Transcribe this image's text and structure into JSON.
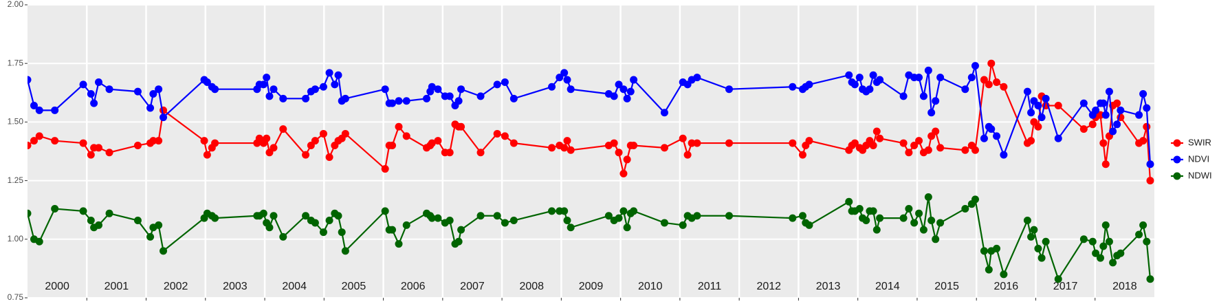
{
  "chart_data": {
    "type": "line",
    "x": [
      2000.0,
      2000.11,
      2000.2,
      2000.46,
      2000.94,
      2001.07,
      2001.12,
      2001.2,
      2001.38,
      2001.86,
      2002.07,
      2002.12,
      2002.21,
      2002.29,
      2002.98,
      2003.03,
      2003.11,
      2003.16,
      2003.87,
      2003.91,
      2003.98,
      2004.03,
      2004.08,
      2004.15,
      2004.31,
      2004.69,
      2004.78,
      2004.85,
      2004.99,
      2005.09,
      2005.18,
      2005.24,
      2005.3,
      2005.36,
      2006.03,
      2006.1,
      2006.15,
      2006.26,
      2006.39,
      2006.73,
      2006.79,
      2006.82,
      2006.92,
      2007.04,
      2007.12,
      2007.21,
      2007.27,
      2007.31,
      2007.64,
      2007.92,
      2008.05,
      2008.2,
      2008.84,
      2008.97,
      2009.05,
      2009.1,
      2009.16,
      2009.8,
      2009.89,
      2009.97,
      2010.05,
      2010.11,
      2010.17,
      2010.22,
      2010.74,
      2011.05,
      2011.13,
      2011.2,
      2011.29,
      2011.83,
      2012.9,
      2013.07,
      2013.12,
      2013.18,
      2013.85,
      2013.9,
      2013.95,
      2014.03,
      2014.08,
      2014.14,
      2014.2,
      2014.26,
      2014.32,
      2014.37,
      2014.77,
      2014.86,
      2014.95,
      2015.03,
      2015.11,
      2015.19,
      2015.24,
      2015.31,
      2015.39,
      2015.81,
      2015.92,
      2015.98,
      2016.13,
      2016.21,
      2016.25,
      2016.34,
      2016.46,
      2016.86,
      2016.92,
      2016.97,
      2017.04,
      2017.1,
      2017.17,
      2017.38,
      2017.81,
      2017.96,
      2018.01,
      2018.09,
      2018.14,
      2018.18,
      2018.24,
      2018.3,
      2018.37,
      2018.43,
      2018.74,
      2018.81,
      2018.87,
      2018.93
    ],
    "series": [
      {
        "name": "SWIR",
        "color": "#ff0000",
        "values": [
          1.4,
          1.42,
          1.44,
          1.42,
          1.41,
          1.36,
          1.39,
          1.39,
          1.37,
          1.4,
          1.41,
          1.42,
          1.42,
          1.55,
          1.42,
          1.36,
          1.39,
          1.41,
          1.41,
          1.43,
          1.41,
          1.43,
          1.37,
          1.39,
          1.47,
          1.36,
          1.4,
          1.42,
          1.45,
          1.35,
          1.4,
          1.42,
          1.43,
          1.45,
          1.3,
          1.4,
          1.4,
          1.48,
          1.44,
          1.39,
          1.4,
          1.41,
          1.42,
          1.37,
          1.37,
          1.49,
          1.48,
          1.48,
          1.37,
          1.45,
          1.44,
          1.41,
          1.39,
          1.4,
          1.39,
          1.42,
          1.38,
          1.4,
          1.41,
          1.37,
          1.28,
          1.34,
          1.4,
          1.4,
          1.39,
          1.43,
          1.36,
          1.41,
          1.41,
          1.41,
          1.41,
          1.36,
          1.4,
          1.42,
          1.38,
          1.4,
          1.41,
          1.39,
          1.38,
          1.4,
          1.42,
          1.4,
          1.46,
          1.43,
          1.41,
          1.37,
          1.4,
          1.42,
          1.37,
          1.38,
          1.44,
          1.46,
          1.39,
          1.38,
          1.4,
          1.38,
          1.68,
          1.66,
          1.75,
          1.67,
          1.65,
          1.41,
          1.42,
          1.5,
          1.48,
          1.61,
          1.57,
          1.57,
          1.47,
          1.49,
          1.52,
          1.53,
          1.41,
          1.32,
          1.44,
          1.57,
          1.58,
          1.52,
          1.41,
          1.42,
          1.48,
          1.25
        ]
      },
      {
        "name": "NDVI",
        "color": "#0000ff",
        "values": [
          1.68,
          1.57,
          1.55,
          1.55,
          1.66,
          1.62,
          1.58,
          1.67,
          1.64,
          1.63,
          1.56,
          1.62,
          1.64,
          1.52,
          1.68,
          1.67,
          1.65,
          1.64,
          1.64,
          1.66,
          1.66,
          1.69,
          1.61,
          1.64,
          1.6,
          1.6,
          1.63,
          1.64,
          1.65,
          1.71,
          1.66,
          1.7,
          1.59,
          1.6,
          1.64,
          1.58,
          1.58,
          1.59,
          1.59,
          1.6,
          1.63,
          1.65,
          1.64,
          1.61,
          1.61,
          1.57,
          1.59,
          1.64,
          1.61,
          1.66,
          1.67,
          1.6,
          1.65,
          1.69,
          1.71,
          1.68,
          1.64,
          1.62,
          1.61,
          1.66,
          1.64,
          1.6,
          1.63,
          1.68,
          1.54,
          1.67,
          1.66,
          1.68,
          1.69,
          1.64,
          1.65,
          1.64,
          1.65,
          1.66,
          1.7,
          1.67,
          1.66,
          1.69,
          1.64,
          1.63,
          1.64,
          1.7,
          1.67,
          1.68,
          1.61,
          1.7,
          1.69,
          1.69,
          1.61,
          1.72,
          1.54,
          1.59,
          1.69,
          1.64,
          1.69,
          1.74,
          1.43,
          1.48,
          1.47,
          1.44,
          1.36,
          1.63,
          1.54,
          1.59,
          1.57,
          1.52,
          1.6,
          1.43,
          1.58,
          1.53,
          1.55,
          1.58,
          1.58,
          1.53,
          1.63,
          1.46,
          1.49,
          1.55,
          1.53,
          1.62,
          1.56,
          1.32
        ]
      },
      {
        "name": "NDWI",
        "color": "#006400",
        "values": [
          1.11,
          1.0,
          0.99,
          1.13,
          1.12,
          1.08,
          1.05,
          1.06,
          1.11,
          1.08,
          1.01,
          1.05,
          1.06,
          0.95,
          1.09,
          1.11,
          1.1,
          1.09,
          1.1,
          1.1,
          1.11,
          1.07,
          1.05,
          1.1,
          1.01,
          1.1,
          1.08,
          1.07,
          1.03,
          1.08,
          1.11,
          1.1,
          1.03,
          0.95,
          1.12,
          1.04,
          1.04,
          0.98,
          1.06,
          1.11,
          1.1,
          1.09,
          1.09,
          1.07,
          1.08,
          0.98,
          0.99,
          1.04,
          1.1,
          1.1,
          1.07,
          1.08,
          1.12,
          1.12,
          1.12,
          1.08,
          1.05,
          1.1,
          1.08,
          1.09,
          1.12,
          1.05,
          1.11,
          1.12,
          1.07,
          1.06,
          1.1,
          1.09,
          1.1,
          1.1,
          1.09,
          1.1,
          1.07,
          1.06,
          1.16,
          1.12,
          1.12,
          1.13,
          1.09,
          1.08,
          1.12,
          1.12,
          1.04,
          1.09,
          1.09,
          1.13,
          1.07,
          1.11,
          1.04,
          1.18,
          1.08,
          1.0,
          1.07,
          1.13,
          1.15,
          1.17,
          0.95,
          0.87,
          0.95,
          0.96,
          0.85,
          1.08,
          1.01,
          1.04,
          0.96,
          0.92,
          0.99,
          0.83,
          1.0,
          0.99,
          0.94,
          0.92,
          0.97,
          1.06,
          0.99,
          0.9,
          0.93,
          0.94,
          1.02,
          1.06,
          0.99,
          0.83
        ]
      }
    ],
    "xlim": [
      2000,
      2019
    ],
    "xticks": [
      2001,
      2002,
      2003,
      2004,
      2005,
      2006,
      2007,
      2008,
      2009,
      2010,
      2011,
      2012,
      2013,
      2014,
      2015,
      2016,
      2017,
      2018
    ],
    "year_labels": [
      2000,
      2001,
      2002,
      2003,
      2004,
      2005,
      2006,
      2007,
      2008,
      2009,
      2010,
      2011,
      2012,
      2013,
      2014,
      2015,
      2016,
      2017,
      2018
    ],
    "ylim": [
      0.75,
      2
    ],
    "yticks": [
      0.75,
      {
        "value": 1,
        "label": "1.00"
      },
      1.25,
      {
        "value": 1.5,
        "label": "1.50"
      },
      1.75,
      {
        "value": 2,
        "label": "2.00"
      }
    ],
    "grid": true,
    "legend": "right"
  }
}
